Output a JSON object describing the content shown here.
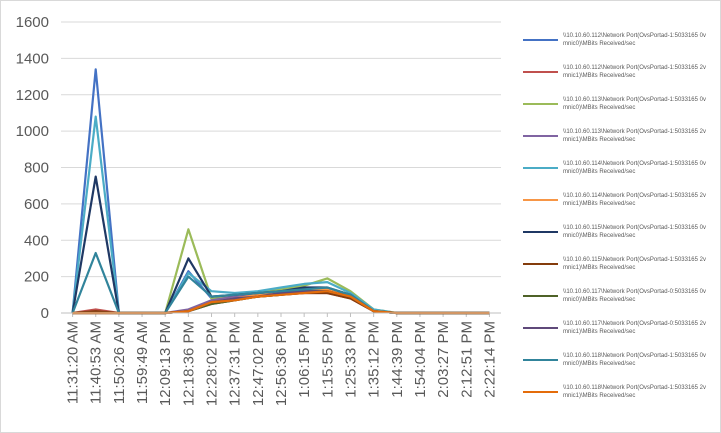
{
  "chart_data": {
    "type": "line",
    "title": "",
    "xlabel": "",
    "ylabel": "",
    "ylim": [
      0,
      1600
    ],
    "yticks": [
      0,
      200,
      400,
      600,
      800,
      1000,
      1200,
      1400,
      1600
    ],
    "grid": "horizontal",
    "legend_position": "right",
    "x": [
      "11:31:20 AM",
      "11:40:53 AM",
      "11:50:26 AM",
      "11:59:49 AM",
      "12:09:13 PM",
      "12:18:36 PM",
      "12:28:02 PM",
      "12:37:31 PM",
      "12:47:02 PM",
      "12:56:36 PM",
      "1:06:15 PM",
      "1:15:55 PM",
      "1:25:33 PM",
      "1:35:12 PM",
      "1:44:39 PM",
      "1:54:04 PM",
      "2:03:27 PM",
      "2:12:51 PM",
      "2:22:14 PM"
    ],
    "series": [
      {
        "name": "\\\\10.10.60.112\\Network Port(OvsPortad-1:5033165 0vmnic0)\\MBits Received/sec",
        "color": "#4472c4",
        "values": [
          0,
          1340,
          0,
          0,
          0,
          230,
          80,
          90,
          100,
          110,
          120,
          120,
          90,
          10,
          0,
          0,
          0,
          0,
          0
        ]
      },
      {
        "name": "\\\\10.10.60.112\\Network Port(OvsPortad-1:5033165 2vmnic1)\\MBits Received/sec",
        "color": "#c0504d",
        "values": [
          0,
          20,
          0,
          0,
          0,
          10,
          60,
          80,
          90,
          100,
          110,
          110,
          80,
          10,
          0,
          0,
          0,
          0,
          0
        ]
      },
      {
        "name": "\\\\10.10.60.113\\Network Port(OvsPortad-1:5033165 0vmnic0)\\MBits Received/sec",
        "color": "#9bbb59",
        "values": [
          0,
          0,
          0,
          0,
          0,
          460,
          80,
          90,
          110,
          130,
          150,
          190,
          120,
          20,
          0,
          0,
          0,
          0,
          0
        ]
      },
      {
        "name": "\\\\10.10.60.113\\Network Port(OvsPortad-1:5033165 2vmnic1)\\MBits Received/sec",
        "color": "#8064a2",
        "values": [
          0,
          0,
          0,
          0,
          0,
          20,
          70,
          90,
          100,
          120,
          130,
          130,
          100,
          10,
          0,
          0,
          0,
          0,
          0
        ]
      },
      {
        "name": "\\\\10.10.60.114\\Network Port(OvsPortad-1:5033165 0vmnic0)\\MBits Received/sec",
        "color": "#4bacc6",
        "values": [
          0,
          1080,
          0,
          0,
          0,
          220,
          120,
          110,
          120,
          140,
          160,
          170,
          110,
          20,
          0,
          0,
          0,
          0,
          0
        ]
      },
      {
        "name": "\\\\10.10.60.114\\Network Port(OvsPortad-1:5033165 2vmnic1)\\MBits Received/sec",
        "color": "#f79646",
        "values": [
          0,
          0,
          0,
          0,
          0,
          10,
          60,
          80,
          100,
          110,
          130,
          130,
          90,
          10,
          0,
          0,
          0,
          0,
          0
        ]
      },
      {
        "name": "\\\\10.10.60.115\\Network Port(OvsPortad-1:5033165 0vmnic0)\\MBits Received/sec",
        "color": "#1f3864",
        "values": [
          0,
          750,
          0,
          0,
          0,
          300,
          90,
          100,
          110,
          120,
          140,
          140,
          100,
          10,
          0,
          0,
          0,
          0,
          0
        ]
      },
      {
        "name": "\\\\10.10.60.115\\Network Port(OvsPortad-1:5033165 2vmnic1)\\MBits Received/sec",
        "color": "#843c0c",
        "values": [
          0,
          10,
          0,
          0,
          0,
          10,
          50,
          70,
          90,
          100,
          110,
          110,
          80,
          10,
          0,
          0,
          0,
          0,
          0
        ]
      },
      {
        "name": "\\\\10.10.60.117\\Network Port(OvsPortad-0:5033165 0vmnic0)\\MBits Received/sec",
        "color": "#4f6228",
        "values": [
          0,
          0,
          0,
          0,
          0,
          10,
          50,
          70,
          90,
          100,
          120,
          120,
          90,
          10,
          0,
          0,
          0,
          0,
          0
        ]
      },
      {
        "name": "\\\\10.10.60.117\\Network Port(OvsPortad-0:5033165 2vmnic1)\\MBits Received/sec",
        "color": "#5f497a",
        "values": [
          0,
          0,
          0,
          0,
          0,
          10,
          60,
          80,
          90,
          110,
          120,
          120,
          90,
          10,
          0,
          0,
          0,
          0,
          0
        ]
      },
      {
        "name": "\\\\10.10.60.118\\Network Port(OvsPortad-1:5033165 0vmnic0)\\MBits Received/sec",
        "color": "#31849b",
        "values": [
          0,
          330,
          0,
          0,
          0,
          200,
          90,
          100,
          110,
          120,
          130,
          140,
          100,
          10,
          0,
          0,
          0,
          0,
          0
        ]
      },
      {
        "name": "\\\\10.10.60.118\\Network Port(OvsPortad-1:5033165 2vmnic1)\\MBits Received/sec",
        "color": "#e46c0a",
        "values": [
          0,
          0,
          0,
          0,
          0,
          10,
          60,
          70,
          90,
          100,
          110,
          120,
          90,
          10,
          0,
          0,
          0,
          0,
          0
        ]
      }
    ]
  }
}
